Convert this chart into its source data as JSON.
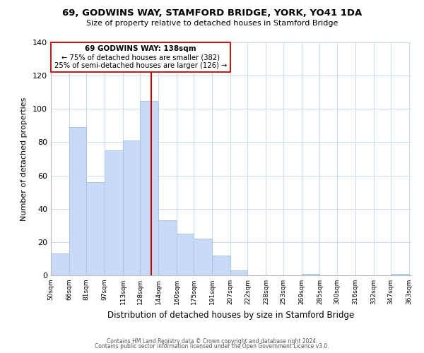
{
  "title1": "69, GODWINS WAY, STAMFORD BRIDGE, YORK, YO41 1DA",
  "title2": "Size of property relative to detached houses in Stamford Bridge",
  "xlabel": "Distribution of detached houses by size in Stamford Bridge",
  "ylabel": "Number of detached properties",
  "bar_color": "#c8daf5",
  "bar_edge_color": "#a8c4e8",
  "vline_color": "#cc0000",
  "vline_x": 138,
  "annotation_title": "69 GODWINS WAY: 138sqm",
  "annotation_line1": "← 75% of detached houses are smaller (382)",
  "annotation_line2": "25% of semi-detached houses are larger (126) →",
  "box_edge_color": "#cc0000",
  "bins": [
    50,
    66,
    81,
    97,
    113,
    128,
    144,
    160,
    175,
    191,
    207,
    222,
    238,
    253,
    269,
    285,
    300,
    316,
    332,
    347,
    363
  ],
  "counts": [
    13,
    89,
    56,
    75,
    81,
    105,
    33,
    25,
    22,
    12,
    3,
    0,
    0,
    0,
    1,
    0,
    0,
    0,
    0,
    1
  ],
  "ylim": [
    0,
    140
  ],
  "yticks": [
    0,
    20,
    40,
    60,
    80,
    100,
    120,
    140
  ],
  "footer1": "Contains HM Land Registry data © Crown copyright and database right 2024.",
  "footer2": "Contains public sector information licensed under the Open Government Licence v3.0."
}
